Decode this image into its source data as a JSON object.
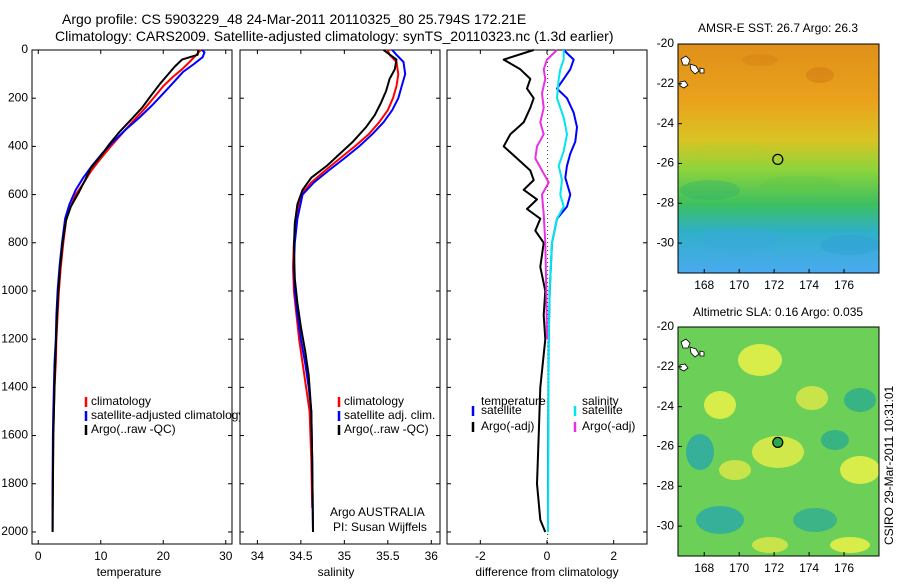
{
  "header": {
    "line1": "Argo profile: CS 5903229_48 24-Mar-2011 20110325_80 25.794S 172.21E",
    "line2": "Climatology: CARS2009. Satellite-adjusted climatology: synTS_20110323.nc (1.3d earlier)"
  },
  "side_stamp": "CSIRO 29-Mar-2011 10:31:01",
  "colors": {
    "climatology": "#ff0000",
    "satellite": "#0000ff",
    "argo": "#000000",
    "salinity_satellite": "#00e5ee",
    "salinity_argo_adj": "#e632e6"
  },
  "chart_data": [
    {
      "type": "line",
      "xlabel": "temperature",
      "ylabel": "",
      "xlim": [
        -1,
        31
      ],
      "ylim": [
        2050,
        0
      ],
      "xticks": [
        0,
        10,
        20,
        30
      ],
      "yticks": [
        0,
        200,
        400,
        600,
        800,
        1000,
        1200,
        1400,
        1600,
        1800,
        2000
      ],
      "legend_placement": "lower-right",
      "series": [
        {
          "name": "climatology",
          "color": "#ff0000",
          "x": [
            26.0,
            25.3,
            24.2,
            23.0,
            21.6,
            20.0,
            18.4,
            16.8,
            15.0,
            13.3,
            11.6,
            10.0,
            8.5,
            7.3,
            6.0,
            5.2,
            4.5,
            4.0,
            3.6,
            3.3,
            3.1,
            2.9,
            2.8,
            2.6,
            2.5,
            2.4,
            2.35,
            2.3
          ],
          "y": [
            0,
            20,
            50,
            80,
            110,
            150,
            200,
            250,
            300,
            350,
            400,
            450,
            500,
            550,
            600,
            650,
            700,
            800,
            900,
            1000,
            1100,
            1200,
            1300,
            1400,
            1500,
            1600,
            1800,
            1900
          ]
        },
        {
          "name": "satellite-adjusted climatology",
          "color": "#0000ff",
          "x": [
            26.2,
            26.6,
            26.3,
            24.8,
            23.2,
            21.8,
            20.0,
            18.2,
            16.2,
            14.0,
            12.0,
            10.2,
            8.6,
            7.2,
            6.0,
            5.0,
            4.3,
            3.8,
            3.4,
            3.1,
            2.9,
            2.8,
            2.6,
            2.5,
            2.4,
            2.35,
            2.3,
            2.3
          ],
          "y": [
            0,
            10,
            30,
            60,
            90,
            130,
            180,
            230,
            280,
            330,
            380,
            430,
            480,
            530,
            580,
            640,
            700,
            800,
            900,
            1000,
            1100,
            1200,
            1300,
            1400,
            1500,
            1600,
            1800,
            2000
          ]
        },
        {
          "name": "Argo(..raw -QC)",
          "color": "#000000",
          "x": [
            25.6,
            25.5,
            23.0,
            21.8,
            20.8,
            19.5,
            18.0,
            16.6,
            14.8,
            13.0,
            11.4,
            10.0,
            8.4,
            7.5,
            6.5,
            5.2,
            4.4,
            3.9,
            3.5,
            3.2,
            3.0,
            2.85,
            2.7,
            2.6,
            2.5,
            2.4,
            2.35,
            2.3
          ],
          "y": [
            0,
            20,
            40,
            70,
            100,
            140,
            190,
            240,
            290,
            340,
            390,
            440,
            490,
            540,
            590,
            650,
            710,
            800,
            900,
            1000,
            1100,
            1200,
            1300,
            1400,
            1500,
            1600,
            1800,
            2000
          ]
        }
      ]
    },
    {
      "type": "line",
      "xlabel": "salinity",
      "ylabel": "",
      "xlim": [
        33.8,
        36.1
      ],
      "ylim": [
        2050,
        0
      ],
      "xticks": [
        34,
        34.5,
        35,
        35.5,
        36
      ],
      "legend_placement": "lower-right",
      "series": [
        {
          "name": "climatology",
          "color": "#ff0000",
          "x": [
            35.5,
            35.52,
            35.6,
            35.62,
            35.6,
            35.56,
            35.5,
            35.4,
            35.28,
            35.12,
            34.95,
            34.78,
            34.62,
            34.5,
            34.45,
            34.42,
            34.41,
            34.42,
            34.45,
            34.48,
            34.52,
            34.56,
            34.6,
            34.62,
            34.63
          ],
          "y": [
            0,
            20,
            50,
            100,
            150,
            200,
            250,
            300,
            350,
            400,
            450,
            500,
            550,
            600,
            700,
            800,
            900,
            1000,
            1100,
            1200,
            1300,
            1400,
            1500,
            1700,
            1900
          ]
        },
        {
          "name": "satellite adj. clim.",
          "color": "#0000ff",
          "x": [
            35.55,
            35.6,
            35.68,
            35.7,
            35.66,
            35.62,
            35.55,
            35.45,
            35.32,
            35.17,
            35.0,
            34.82,
            34.65,
            34.52,
            34.46,
            34.43,
            34.42,
            34.43,
            34.46,
            34.5,
            34.55,
            34.59,
            34.62,
            34.63,
            34.64
          ],
          "y": [
            0,
            20,
            50,
            100,
            150,
            200,
            250,
            300,
            350,
            400,
            450,
            500,
            550,
            600,
            700,
            800,
            900,
            1000,
            1100,
            1200,
            1300,
            1400,
            1500,
            1700,
            2000
          ]
        },
        {
          "name": "Argo(..raw -QC)",
          "color": "#000000",
          "x": [
            35.45,
            35.6,
            35.58,
            35.52,
            35.48,
            35.42,
            35.35,
            35.25,
            35.1,
            34.95,
            34.8,
            34.62,
            34.52,
            34.46,
            34.43,
            34.42,
            34.43,
            34.46,
            34.5,
            34.55,
            34.59,
            34.62,
            34.63,
            34.64
          ],
          "y": [
            0,
            40,
            80,
            120,
            170,
            220,
            270,
            320,
            380,
            430,
            480,
            530,
            580,
            640,
            720,
            820,
            950,
            1050,
            1150,
            1250,
            1350,
            1500,
            1700,
            2000
          ]
        }
      ]
    },
    {
      "type": "line",
      "xlabel": "difference from climatology",
      "ylabel": "",
      "xlim": [
        -3.0,
        3.0
      ],
      "ylim": [
        2050,
        0
      ],
      "xticks": [
        -2,
        0,
        2
      ],
      "legend_placement": "lower-right",
      "legend_groups": [
        "temperature",
        "salinity"
      ],
      "series": [
        {
          "name": "satellite",
          "group": "temperature",
          "color": "#0000ff",
          "x": [
            0.5,
            0.8,
            0.7,
            0.5,
            0.3,
            0.6,
            0.8,
            0.9,
            0.85,
            0.7,
            0.6,
            0.55,
            0.7,
            0.6,
            0.3,
            0.15,
            0.08,
            0.05,
            0.04,
            0.03,
            0.03
          ],
          "y": [
            0,
            40,
            80,
            120,
            160,
            200,
            260,
            320,
            380,
            430,
            480,
            530,
            600,
            650,
            700,
            800,
            1000,
            1200,
            1500,
            1800,
            2000
          ]
        },
        {
          "name": "Argo(-adj)",
          "group": "temperature",
          "color": "#000000",
          "x": [
            -0.4,
            -1.3,
            -0.8,
            -0.5,
            -0.6,
            -0.4,
            -0.5,
            -0.7,
            -1.1,
            -1.3,
            -0.9,
            -0.5,
            -0.4,
            -0.7,
            -0.3,
            -0.6,
            -0.2,
            -0.35,
            -0.1,
            -0.2,
            -0.05,
            -0.1,
            -0.05,
            -0.2,
            -0.25,
            -0.3,
            -0.2,
            -0.05
          ],
          "y": [
            0,
            40,
            80,
            120,
            160,
            200,
            240,
            300,
            350,
            400,
            450,
            500,
            540,
            580,
            620,
            660,
            700,
            750,
            800,
            900,
            1000,
            1100,
            1200,
            1400,
            1600,
            1800,
            1950,
            2000
          ]
        },
        {
          "name": "satellite",
          "group": "salinity",
          "color": "#00e5ee",
          "x": [
            0.5,
            0.5,
            0.4,
            0.35,
            0.3,
            0.5,
            0.6,
            0.5,
            0.35,
            0.45,
            0.4,
            0.5,
            0.3,
            0.15,
            0.08,
            0.05,
            0.04,
            0.03
          ],
          "y": [
            0,
            40,
            80,
            120,
            200,
            280,
            350,
            420,
            480,
            540,
            600,
            650,
            700,
            800,
            1000,
            1200,
            1600,
            2000
          ]
        },
        {
          "name": "Argo(-adj)",
          "group": "salinity",
          "color": "#e632e6",
          "x": [
            0.3,
            0.0,
            -0.1,
            -0.05,
            -0.15,
            -0.1,
            -0.2,
            -0.1,
            -0.3,
            -0.35,
            -0.15,
            0.05,
            -0.15,
            -0.1,
            -0.05,
            -0.02,
            0.0
          ],
          "y": [
            0,
            40,
            80,
            120,
            180,
            240,
            300,
            350,
            400,
            450,
            500,
            550,
            600,
            680,
            800,
            1000,
            1200
          ]
        }
      ]
    },
    {
      "type": "heatmap",
      "title": "AMSR-E SST: 26.7 Argo: 26.3",
      "xlim": [
        166.5,
        178
      ],
      "ylim": [
        -31.5,
        -20
      ],
      "xticks": [
        168,
        170,
        172,
        174,
        176
      ],
      "yticks": [
        -20,
        -22,
        -24,
        -26,
        -28,
        -30
      ],
      "marker": {
        "x": 172.21,
        "y": -25.794
      }
    },
    {
      "type": "heatmap",
      "title": "Altimetric SLA: 0.16 Argo: 0.035",
      "xlim": [
        166.5,
        178
      ],
      "ylim": [
        -31.5,
        -20
      ],
      "xticks": [
        168,
        170,
        172,
        174,
        176
      ],
      "yticks": [
        -20,
        -22,
        -24,
        -26,
        -28,
        -30
      ],
      "marker": {
        "x": 172.21,
        "y": -25.794
      }
    }
  ]
}
